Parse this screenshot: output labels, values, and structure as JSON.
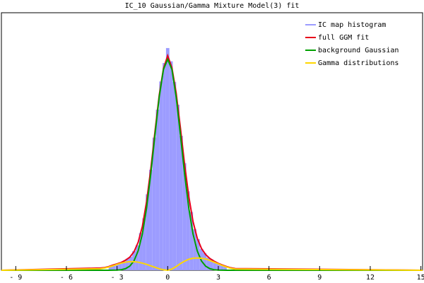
{
  "chart_data": {
    "type": "line",
    "title": "IC_10 Gaussian/Gamma Mixture Model(3) fit",
    "xlim": [
      -9.85,
      15.1
    ],
    "ylim": [
      0,
      1.05
    ],
    "xticks": [
      {
        "value": -9,
        "label": "- 9"
      },
      {
        "value": -6,
        "label": "- 6"
      },
      {
        "value": -3,
        "label": "- 3"
      },
      0,
      3,
      6,
      9,
      12,
      15
    ],
    "legend": "top-right",
    "series": [
      {
        "name": "IC map histogram",
        "color": "#9c9cff",
        "type": "histogram",
        "bins": [
          -3.5,
          -3.3,
          -3.1,
          -2.9,
          -2.7,
          -2.5,
          -2.3,
          -2.1,
          -1.9,
          -1.7,
          -1.5,
          -1.3,
          -1.1,
          -0.9,
          -0.7,
          -0.5,
          -0.3,
          -0.1,
          0.1,
          0.3,
          0.5,
          0.7,
          0.9,
          1.1,
          1.3,
          1.5,
          1.7,
          1.9,
          2.1,
          2.3,
          2.5,
          2.7,
          2.9,
          3.1,
          3.3,
          3.5
        ],
        "values": [
          0.016,
          0.023,
          0.025,
          0.032,
          0.036,
          0.047,
          0.055,
          0.078,
          0.102,
          0.152,
          0.212,
          0.31,
          0.41,
          0.541,
          0.655,
          0.77,
          0.845,
          0.906,
          0.852,
          0.768,
          0.675,
          0.548,
          0.437,
          0.322,
          0.238,
          0.168,
          0.127,
          0.087,
          0.07,
          0.052,
          0.045,
          0.034,
          0.029,
          0.021,
          0.018
        ]
      },
      {
        "name": "full GGM fit",
        "color": "#e8001a",
        "type": "line",
        "x": [
          -9.85,
          -4,
          -3.75,
          -3.5,
          -3.25,
          -3,
          -2.75,
          -2.5,
          -2.25,
          -2,
          -1.75,
          -1.5,
          -1.25,
          -1,
          -0.75,
          -0.5,
          -0.25,
          0,
          0.25,
          0.5,
          0.75,
          1,
          1.25,
          1.5,
          1.75,
          2,
          2.25,
          2.5,
          2.75,
          3,
          3.25,
          3.5,
          3.75,
          4,
          15.1
        ],
        "values": [
          0,
          0.009,
          0.011,
          0.015,
          0.021,
          0.026,
          0.032,
          0.041,
          0.053,
          0.075,
          0.114,
          0.179,
          0.28,
          0.414,
          0.568,
          0.715,
          0.823,
          0.875,
          0.826,
          0.724,
          0.583,
          0.433,
          0.301,
          0.199,
          0.131,
          0.089,
          0.064,
          0.048,
          0.037,
          0.028,
          0.021,
          0.015,
          0.01,
          0.007,
          0
        ]
      },
      {
        "name": "background Gaussian",
        "color": "#00a000",
        "type": "line",
        "x": [
          -9.85,
          -4,
          -3.75,
          -3.5,
          -3.25,
          -3,
          -2.75,
          -2.5,
          -2.25,
          -2,
          -1.75,
          -1.5,
          -1.25,
          -1,
          -0.75,
          -0.5,
          -0.25,
          0,
          0.25,
          0.5,
          0.75,
          1,
          1.25,
          1.5,
          1.75,
          2,
          2.25,
          2.5,
          2.75,
          3,
          3.25,
          3.5,
          3.75,
          4,
          15.1
        ],
        "values": [
          0,
          0,
          0,
          0.0001,
          0.0003,
          0.0008,
          0.0023,
          0.0065,
          0.0165,
          0.038,
          0.079,
          0.148,
          0.254,
          0.394,
          0.554,
          0.707,
          0.819,
          0.86,
          0.819,
          0.707,
          0.554,
          0.394,
          0.254,
          0.148,
          0.079,
          0.038,
          0.0165,
          0.0065,
          0.0023,
          0.0008,
          0.0003,
          0.0001,
          0,
          0,
          0
        ]
      },
      {
        "name": "Gamma distributions",
        "color": "#ffd700",
        "type": "line",
        "x": [
          -9.85,
          -4,
          -3.75,
          -3.5,
          -3.25,
          -3,
          -2.75,
          -2.5,
          -2.25,
          -2,
          -1.75,
          -1.5,
          -1.25,
          -1,
          -0.75,
          -0.5,
          -0.25,
          0,
          0.25,
          0.5,
          0.75,
          1,
          1.25,
          1.5,
          1.75,
          2,
          2.25,
          2.5,
          2.75,
          3,
          3.25,
          3.5,
          3.75,
          4,
          15.1
        ],
        "values": [
          0,
          0.006,
          0.009,
          0.013,
          0.018,
          0.024,
          0.029,
          0.033,
          0.035,
          0.035,
          0.033,
          0.029,
          0.024,
          0.018,
          0.012,
          0.006,
          0.002,
          0,
          0.005,
          0.015,
          0.027,
          0.037,
          0.045,
          0.049,
          0.05,
          0.049,
          0.046,
          0.04,
          0.033,
          0.026,
          0.019,
          0.013,
          0.008,
          0.005,
          0
        ]
      }
    ]
  }
}
